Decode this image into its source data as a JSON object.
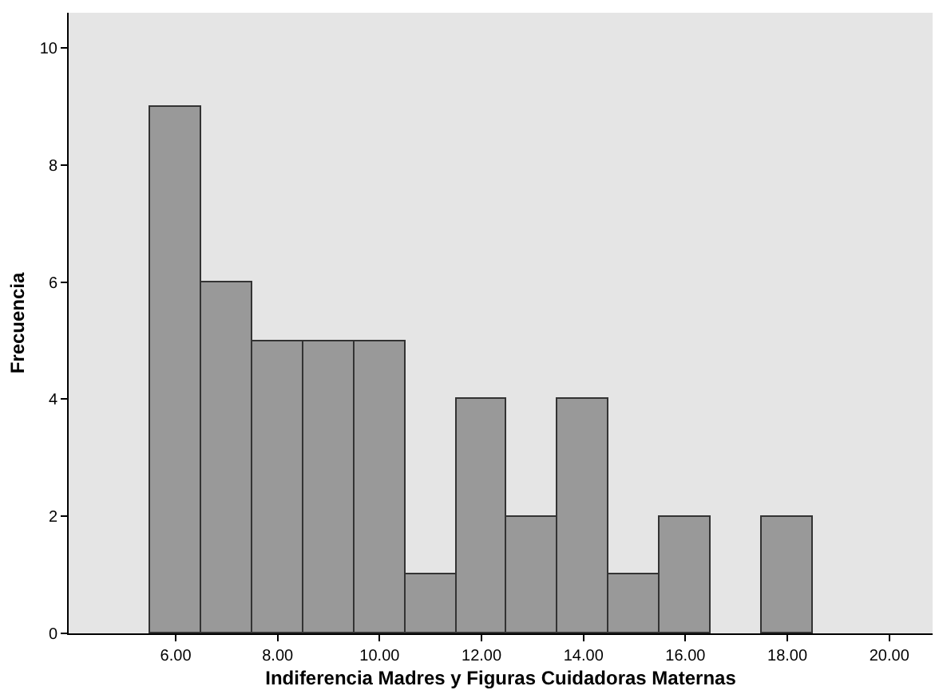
{
  "chart_data": {
    "type": "histogram",
    "xlabel": "Indiferencia Madres y Figuras Cuidadoras Maternas",
    "ylabel": "Frecuencia",
    "bins": [
      5.5,
      6.5,
      7.5,
      8.5,
      9.5,
      10.5,
      11.5,
      12.5,
      13.5,
      14.5,
      15.5,
      16.5,
      17.5,
      18.5
    ],
    "values": [
      9,
      6,
      5,
      5,
      5,
      1,
      4,
      2,
      4,
      1,
      2,
      0,
      2
    ],
    "color": "#999999",
    "xlim": [
      3.9,
      20.85
    ],
    "xticks": [
      {
        "value": 6,
        "label": "6.00"
      },
      {
        "value": 8,
        "label": "8.00"
      },
      {
        "value": 10,
        "label": "10.00"
      },
      {
        "value": 12,
        "label": "12.00"
      },
      {
        "value": 14,
        "label": "14.00"
      },
      {
        "value": 16,
        "label": "16.00"
      },
      {
        "value": 18,
        "label": "18.00"
      },
      {
        "value": 20,
        "label": "20.00"
      }
    ],
    "ylim": [
      0,
      10.6
    ],
    "yticks": [
      0,
      2,
      4,
      6,
      8,
      10
    ],
    "grid": false
  }
}
